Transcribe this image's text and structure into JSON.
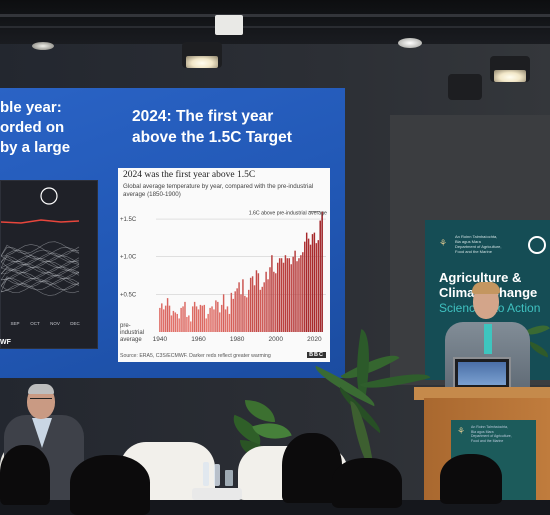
{
  "screen": {
    "left_text": "ble year:\norded on\nby a large",
    "title": "2024: The first year\nabove the 1.5C Target",
    "left_chart_logo": "WF",
    "chart_data": {
      "type": "bar",
      "title": "2024 was the first year above 1.5C",
      "subtitle": "Global average temperature by year, compared with the pre-industrial average (1850-1900)",
      "annotation": "1.6C above pre-industrial average",
      "x_ticks": [
        "1940",
        "1960",
        "1980",
        "2000",
        "2020"
      ],
      "y_ticks": [
        "+1.5C",
        "+1.0C",
        "+0.5C",
        "pre-\nindustrial\naverage"
      ],
      "y_tick_values": [
        1.5,
        1.0,
        0.5,
        0.0
      ],
      "ylim": [
        0,
        1.7
      ],
      "xlim": [
        1938,
        2026
      ],
      "x": [
        1940,
        1941,
        1942,
        1943,
        1944,
        1945,
        1946,
        1947,
        1948,
        1949,
        1950,
        1951,
        1952,
        1953,
        1954,
        1955,
        1956,
        1957,
        1958,
        1959,
        1960,
        1961,
        1962,
        1963,
        1964,
        1965,
        1966,
        1967,
        1968,
        1969,
        1970,
        1971,
        1972,
        1973,
        1974,
        1975,
        1976,
        1977,
        1978,
        1979,
        1980,
        1981,
        1982,
        1983,
        1984,
        1985,
        1986,
        1987,
        1988,
        1989,
        1990,
        1991,
        1992,
        1993,
        1994,
        1995,
        1996,
        1997,
        1998,
        1999,
        2000,
        2001,
        2002,
        2003,
        2004,
        2005,
        2006,
        2007,
        2008,
        2009,
        2010,
        2011,
        2012,
        2013,
        2014,
        2015,
        2016,
        2017,
        2018,
        2019,
        2020,
        2021,
        2022,
        2023,
        2024
      ],
      "values": [
        0.32,
        0.38,
        0.3,
        0.35,
        0.45,
        0.35,
        0.22,
        0.28,
        0.26,
        0.24,
        0.18,
        0.32,
        0.34,
        0.4,
        0.2,
        0.22,
        0.14,
        0.34,
        0.4,
        0.34,
        0.3,
        0.36,
        0.35,
        0.36,
        0.18,
        0.24,
        0.32,
        0.34,
        0.3,
        0.42,
        0.4,
        0.26,
        0.36,
        0.5,
        0.3,
        0.34,
        0.24,
        0.52,
        0.44,
        0.54,
        0.58,
        0.66,
        0.5,
        0.7,
        0.48,
        0.46,
        0.56,
        0.72,
        0.74,
        0.62,
        0.82,
        0.78,
        0.56,
        0.6,
        0.66,
        0.8,
        0.7,
        0.86,
        1.02,
        0.8,
        0.78,
        0.92,
        0.98,
        0.98,
        0.92,
        1.02,
        0.98,
        0.98,
        0.9,
        1.0,
        1.08,
        0.94,
        0.98,
        1.02,
        1.06,
        1.2,
        1.32,
        1.24,
        1.16,
        1.3,
        1.32,
        1.18,
        1.22,
        1.48,
        1.6
      ],
      "source": "Source: ERA5, C3S/ECMWF. Darker reds reflect greater warming",
      "logo": "BBC"
    }
  },
  "left_chart": {
    "x_ticks": [
      "SEP",
      "OCT",
      "NOV",
      "DEC"
    ],
    "highlight_color": "#e8463c",
    "line_color": "#b7b9bf"
  },
  "banner": {
    "title": "Agriculture &\nClimate Change",
    "tagline": "Science into Action",
    "header_text": "An Roinn Talmhaíochta,\nBia agus Mara\nDepartment of Agriculture,\nFood and the Marine",
    "ring_icon": "ring-logo-icon",
    "crest_icon": "harp-icon"
  },
  "colors": {
    "screen_blue": "#2157b4",
    "bar_red": "#d2332f",
    "banner_teal": "#154d55",
    "podium_wood": "#b8773a"
  }
}
